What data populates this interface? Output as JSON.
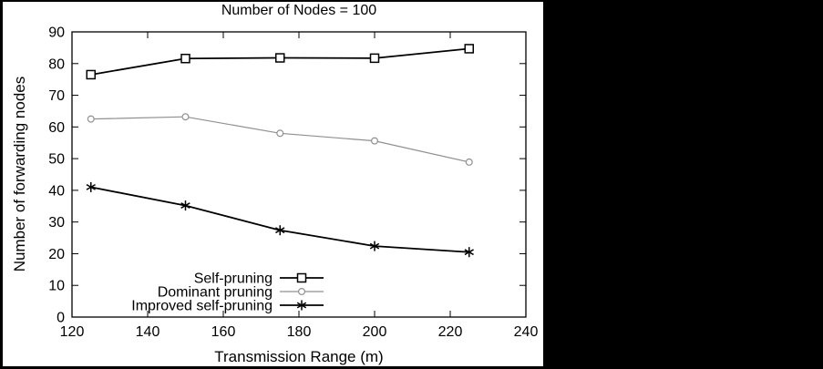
{
  "figure": {
    "background_color": "#000000",
    "panel_color": "#ffffff",
    "axis_color": "#000000"
  },
  "chart_data": {
    "type": "line",
    "title": "Number of Nodes = 100",
    "xlabel": "Transmission Range (m)",
    "ylabel": "Number of forwarding nodes",
    "xlim": [
      120,
      240
    ],
    "ylim": [
      0,
      90
    ],
    "xticks": [
      120,
      140,
      160,
      180,
      200,
      220,
      240
    ],
    "yticks": [
      0,
      10,
      20,
      30,
      40,
      50,
      60,
      70,
      80,
      90
    ],
    "grid": false,
    "legend_position": "bottom-center-inside",
    "x": [
      125,
      150,
      175,
      200,
      225
    ],
    "series": [
      {
        "name": "Self-pruning",
        "marker": "square",
        "color": "#000000",
        "line_width": 1.8,
        "values": [
          76.5,
          81.6,
          81.8,
          81.7,
          84.7
        ]
      },
      {
        "name": "Dominant pruning",
        "marker": "circle",
        "color": "#909090",
        "line_width": 1.2,
        "values": [
          62.5,
          63.2,
          58.0,
          55.6,
          48.9
        ]
      },
      {
        "name": "Improved self-pruning",
        "marker": "asterisk",
        "color": "#000000",
        "line_width": 1.8,
        "values": [
          41.0,
          35.2,
          27.4,
          22.4,
          20.5
        ]
      }
    ]
  }
}
